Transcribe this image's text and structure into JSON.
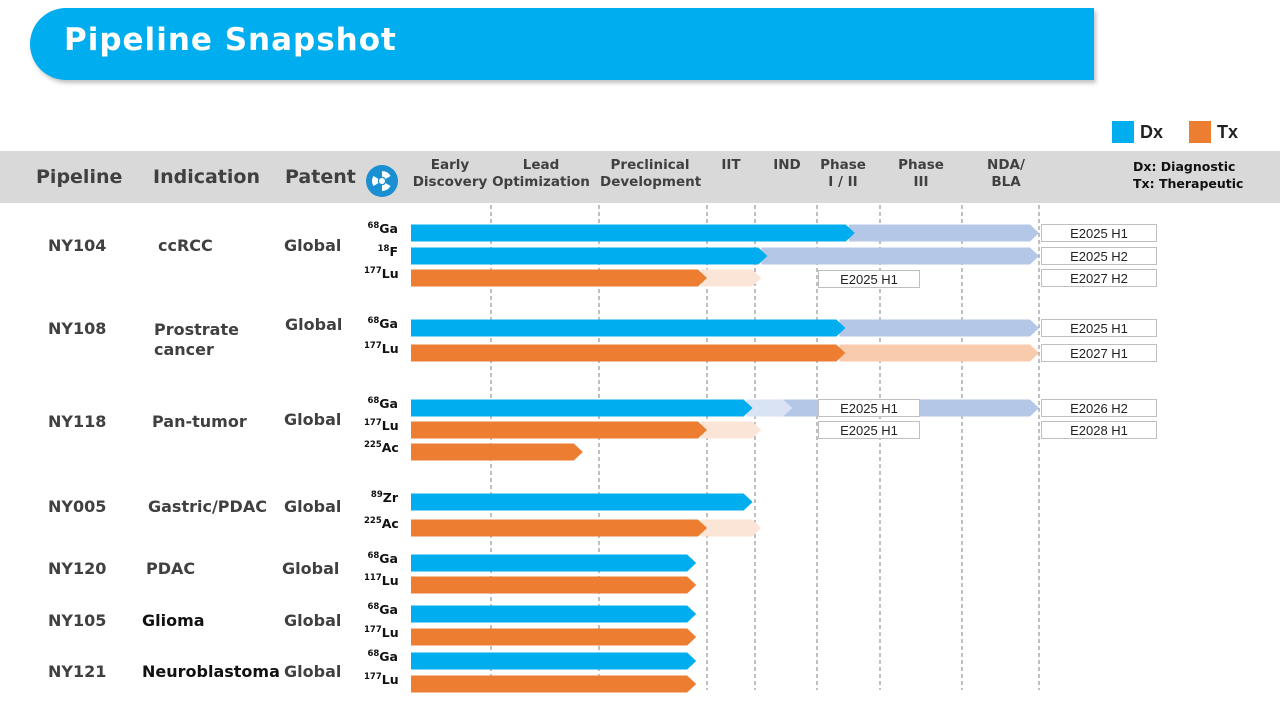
{
  "title": "Pipeline Snapshot",
  "legend": [
    {
      "label": "Dx",
      "color": "#00aeef"
    },
    {
      "label": "Tx",
      "color": "#ed7d31"
    }
  ],
  "header": {
    "pipeline": "Pipeline",
    "indication": "Indication",
    "patent": "Patent",
    "note_dx": "Dx: Diagnostic",
    "note_tx": "Tx: Therapeutic"
  },
  "stages": [
    "Early\nDiscovery",
    "Lead\nOptimization",
    "Preclinical\nDevelopment",
    "IIT",
    "IND",
    "Phase\nI / II",
    "Phase\nIII",
    "NDA/\nBLA"
  ],
  "colors": {
    "dx": "#00aeef",
    "dx_light": "#b4c7e7",
    "dx_pale": "#dae3f3",
    "tx": "#ed7d31",
    "tx_light": "#f8cbad",
    "tx_pale": "#fbe5d6",
    "header_band": "#d9d9d9",
    "title_bar": "#00aeef"
  },
  "chart_data": {
    "type": "table",
    "stage_scale": "0 = start of Early Discovery, 8 = end of NDA/BLA",
    "programs": [
      {
        "pipeline": "NY104",
        "indication": "ccRCC",
        "patent": "Global",
        "tracks": [
          {
            "mass": "68",
            "element": "Ga",
            "kind": "dx",
            "progress": 5.6,
            "planned": 8.0,
            "planned_style": "light",
            "milestone": "E2025 H1"
          },
          {
            "mass": "18",
            "element": "F",
            "kind": "dx",
            "progress": 4.2,
            "planned": 8.0,
            "planned_style": "light",
            "milestone": "E2025 H2"
          },
          {
            "mass": "177",
            "element": "Lu",
            "kind": "tx",
            "progress": 3.0,
            "planned": 4.1,
            "planned_style": "pale",
            "milestone": "E2025 H1",
            "milestone_at_end": true,
            "milestone2": "E2027 H2"
          }
        ]
      },
      {
        "pipeline": "NY108",
        "indication": "Prostrate\ncancer",
        "patent": "Global",
        "tracks": [
          {
            "mass": "68",
            "element": "Ga",
            "kind": "dx",
            "progress": 5.45,
            "planned": 8.0,
            "planned_style": "light",
            "milestone": "E2025 H1"
          },
          {
            "mass": "177",
            "element": "Lu",
            "kind": "tx",
            "progress": 5.45,
            "planned": 8.0,
            "planned_style": "light",
            "milestone": "E2027 H1"
          }
        ]
      },
      {
        "pipeline": "NY118",
        "indication": "Pan-tumor",
        "patent": "Global",
        "tracks": [
          {
            "mass": "68",
            "element": "Ga",
            "kind": "dx",
            "progress": 3.95,
            "planned": 8.0,
            "planned_style": "light",
            "pale_until": 4.6,
            "milestone_mid": "E2025 H1",
            "milestone": "E2026 H2"
          },
          {
            "mass": "177",
            "element": "Lu",
            "kind": "tx",
            "progress": 3.0,
            "planned": 4.1,
            "planned_style": "pale",
            "milestone_mid": "E2025 H1",
            "milestone": "E2028 H1"
          },
          {
            "mass": "225",
            "element": "Ac",
            "kind": "tx",
            "progress": 1.85,
            "planned": 1.85,
            "planned_style": "none"
          }
        ]
      },
      {
        "pipeline": "NY005",
        "indication": "Gastric/PDAC",
        "patent": "Global",
        "tracks": [
          {
            "mass": "89",
            "element": "Zr",
            "kind": "dx",
            "progress": 3.95,
            "planned": 3.95,
            "planned_style": "none"
          },
          {
            "mass": "225",
            "element": "Ac",
            "kind": "tx",
            "progress": 3.0,
            "planned": 4.1,
            "planned_style": "pale"
          }
        ]
      },
      {
        "pipeline": "NY120",
        "indication": "PDAC",
        "patent": "Global",
        "tracks": [
          {
            "mass": "68",
            "element": "Ga",
            "kind": "dx",
            "progress": 2.9,
            "planned": 2.9,
            "planned_style": "none"
          },
          {
            "mass": "117",
            "element": "Lu",
            "kind": "tx",
            "progress": 2.9,
            "planned": 2.9,
            "planned_style": "none"
          }
        ]
      },
      {
        "pipeline": "NY105",
        "indication": "Glioma",
        "patent": "Global",
        "tracks": [
          {
            "mass": "68",
            "element": "Ga",
            "kind": "dx",
            "progress": 2.9,
            "planned": 2.9,
            "planned_style": "none"
          },
          {
            "mass": "177",
            "element": "Lu",
            "kind": "tx",
            "progress": 2.9,
            "planned": 2.9,
            "planned_style": "none"
          }
        ]
      },
      {
        "pipeline": "NY121",
        "indication": "Neuroblastoma",
        "patent": "Global",
        "tracks": [
          {
            "mass": "68",
            "element": "Ga",
            "kind": "dx",
            "progress": 2.9,
            "planned": 2.9,
            "planned_style": "none"
          },
          {
            "mass": "177",
            "element": "Lu",
            "kind": "tx",
            "progress": 2.9,
            "planned": 2.9,
            "planned_style": "none"
          }
        ]
      }
    ]
  }
}
